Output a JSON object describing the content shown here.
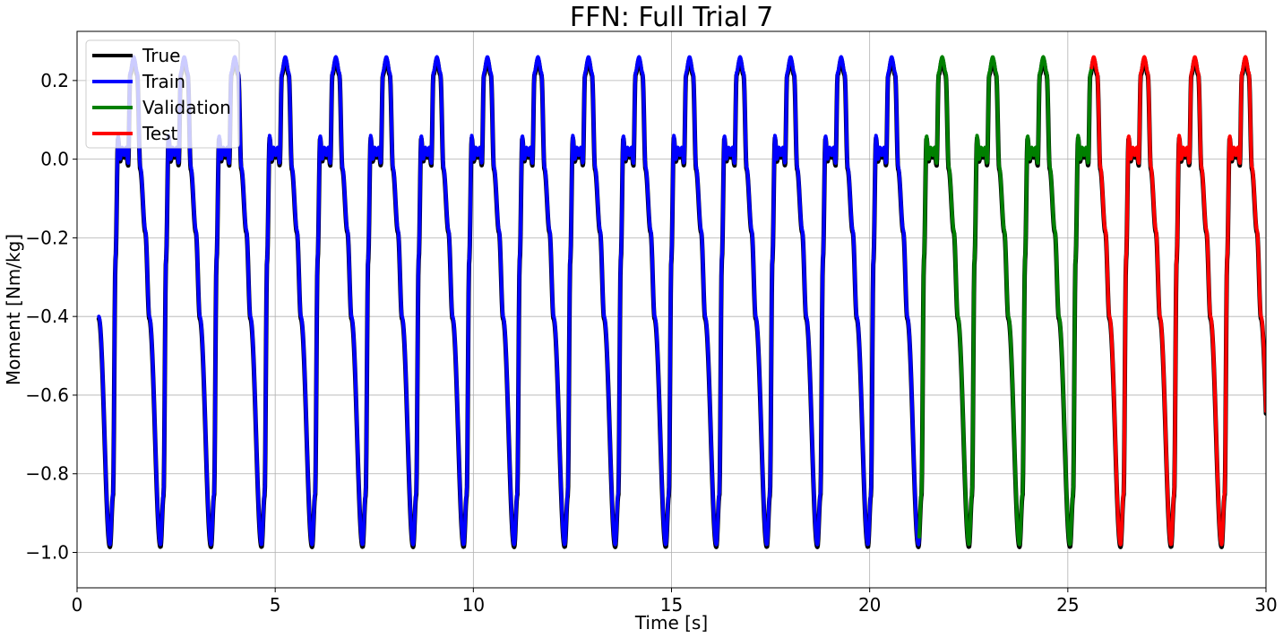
{
  "chart_data": {
    "type": "line",
    "title": "FFN: Full Trial 7",
    "xlabel": "Time [s]",
    "ylabel": "Moment [Nm/kg]",
    "xlim": [
      0,
      30
    ],
    "ylim": [
      -1.09,
      0.325
    ],
    "xticks": [
      0,
      5,
      10,
      15,
      20,
      25,
      30
    ],
    "xtick_labels": [
      "0",
      "5",
      "10",
      "15",
      "20",
      "25",
      "30"
    ],
    "yticks": [
      0.2,
      0.0,
      -0.2,
      -0.4,
      -0.6,
      -0.8,
      -1.0
    ],
    "ytick_labels": [
      "0.2",
      "0.0",
      "−0.2",
      "−0.4",
      "−0.6",
      "−0.8",
      "−1.0"
    ],
    "grid": true,
    "legend_position": "top-left",
    "gait_cycle": {
      "start": 0.55,
      "period": 1.275,
      "shape": {
        "phase": [
          0.0,
          0.22,
          0.28,
          0.33,
          0.38,
          0.42,
          0.46,
          0.5,
          0.54,
          0.58,
          0.62,
          0.69,
          0.76,
          0.82,
          0.92,
          1.0
        ],
        "moment": [
          -0.4,
          -0.98,
          -0.85,
          -0.25,
          0.06,
          0.0,
          0.03,
          0.01,
          0.03,
          -0.01,
          0.22,
          0.26,
          0.22,
          -0.02,
          -0.18,
          -0.4
        ]
      }
    },
    "series": [
      {
        "name": "True",
        "color": "#000000",
        "x_range": [
          0.55,
          30
        ]
      },
      {
        "name": "Train",
        "color": "#0000ff",
        "x_range": [
          0.55,
          21.25
        ]
      },
      {
        "name": "Validation",
        "color": "#008000",
        "x_range": [
          21.25,
          25.6
        ]
      },
      {
        "name": "Test",
        "color": "#ff0000",
        "x_range": [
          25.6,
          30
        ]
      }
    ]
  }
}
